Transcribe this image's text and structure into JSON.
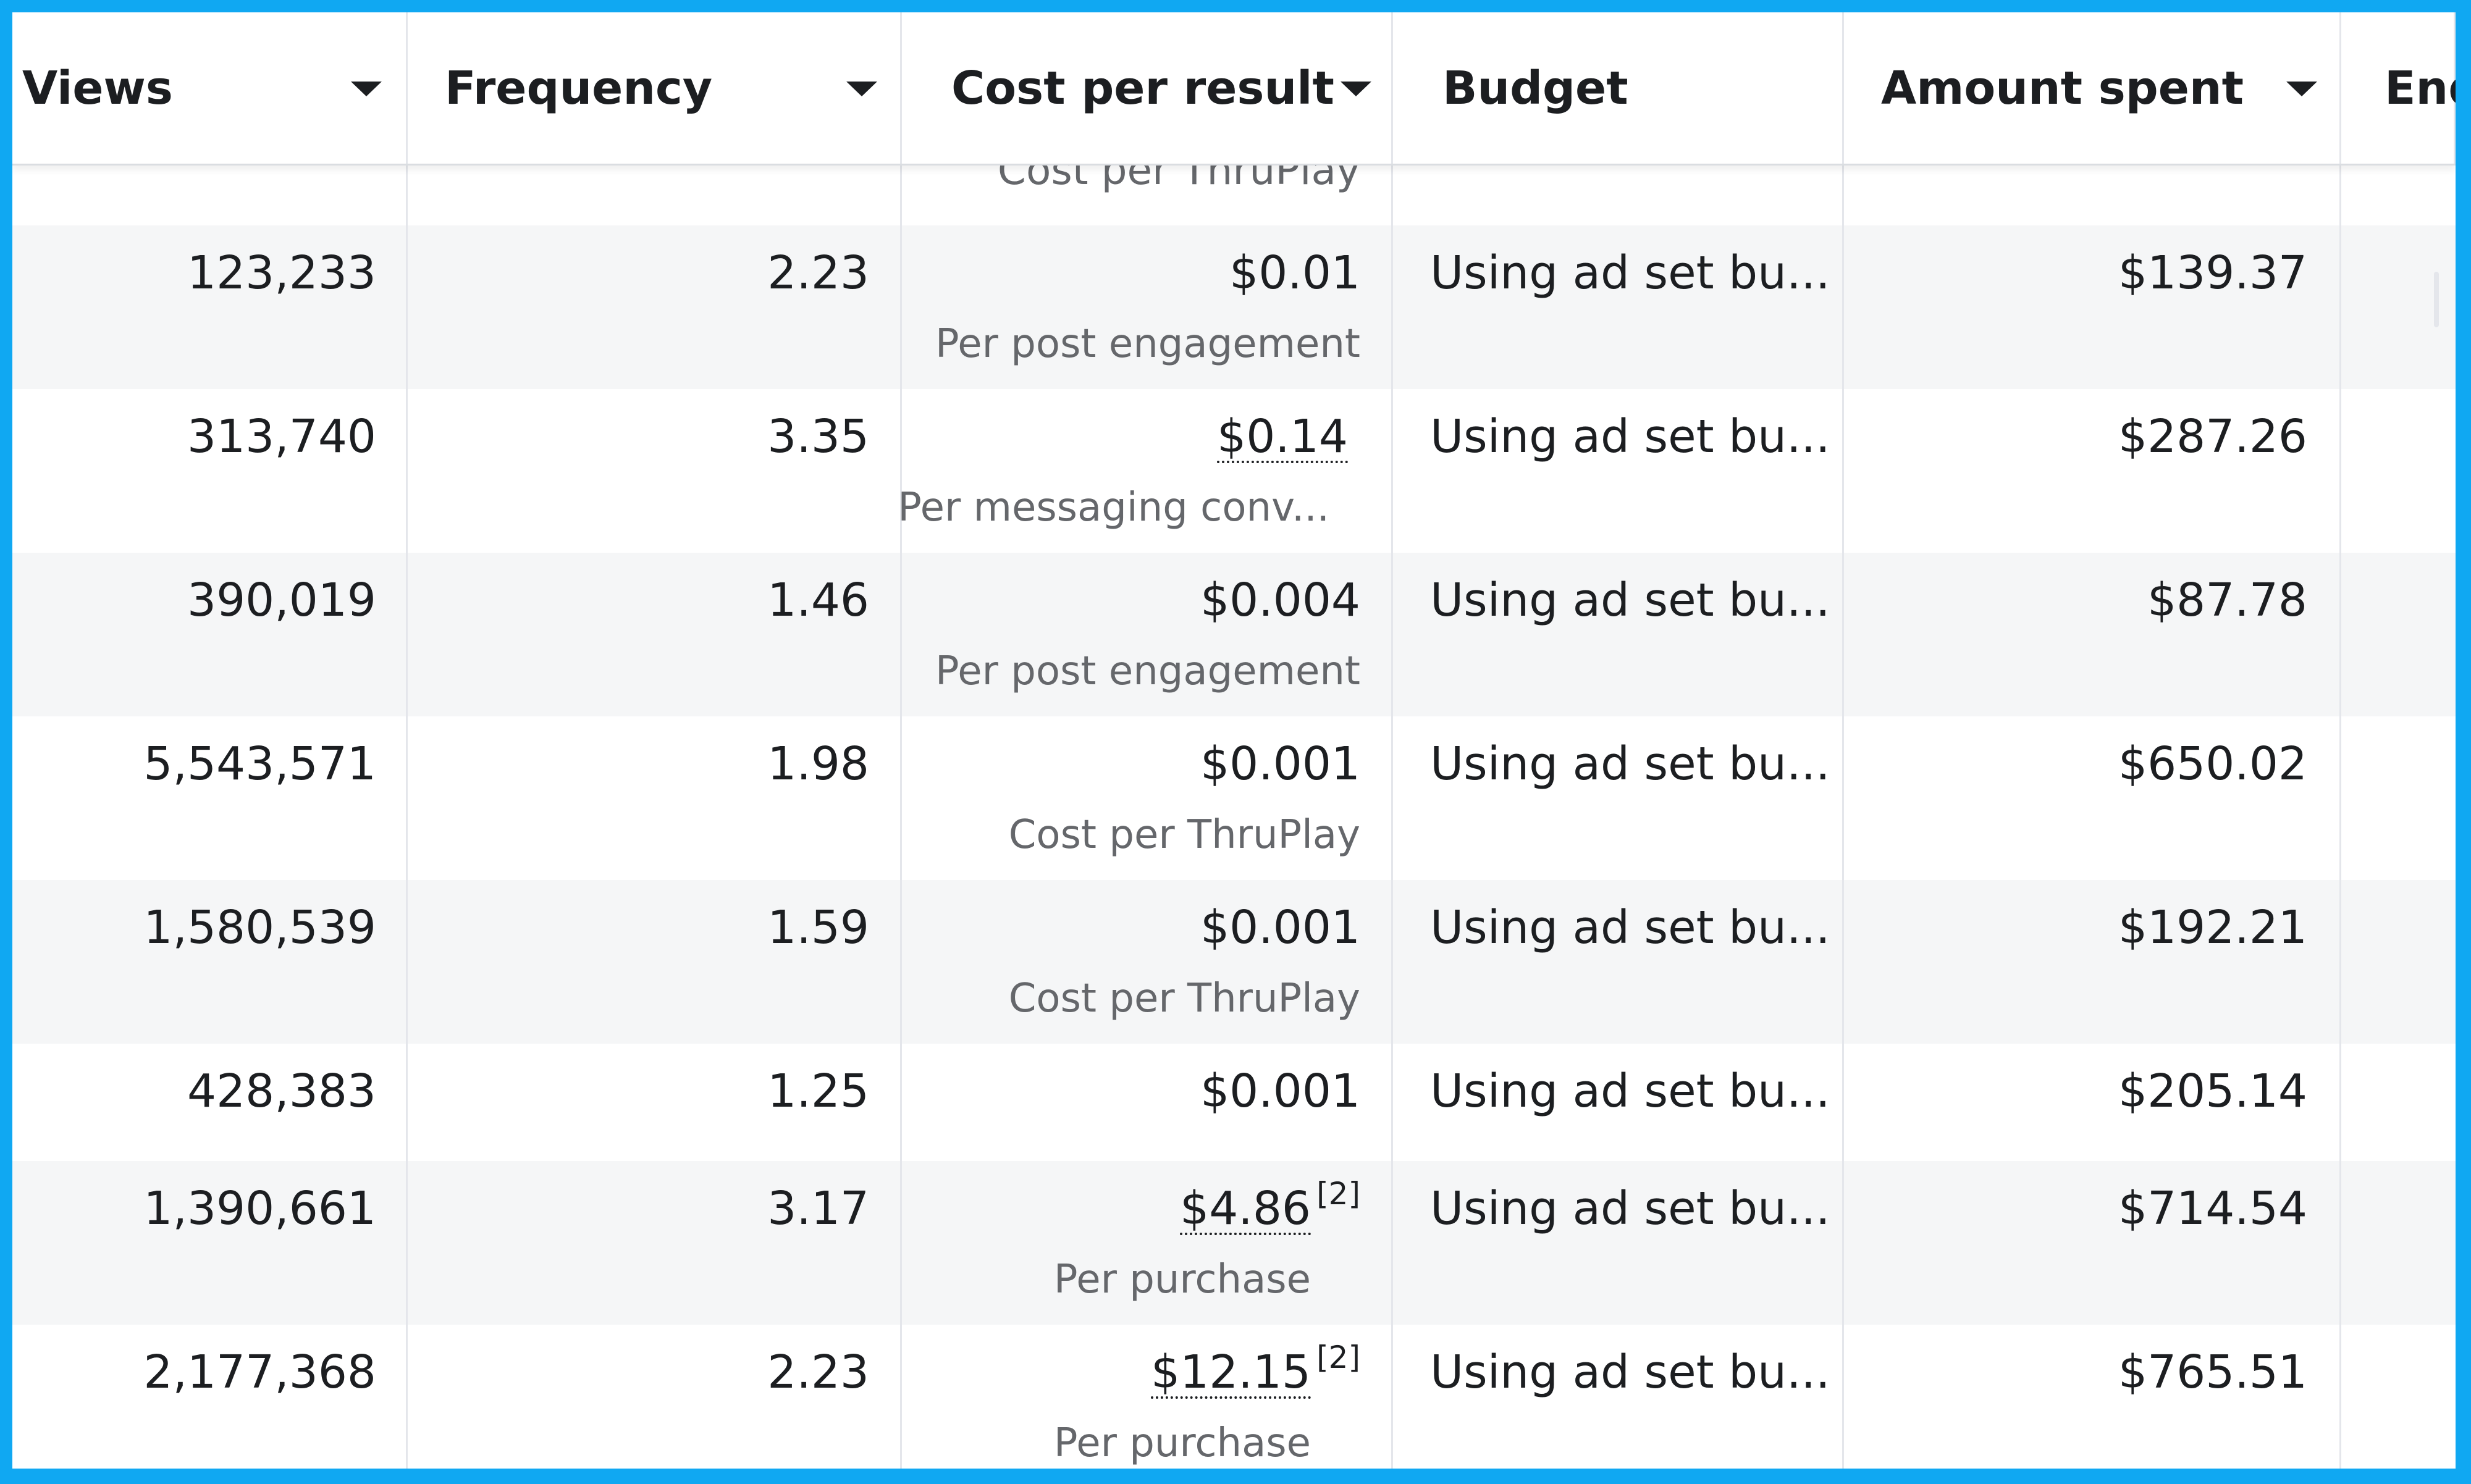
{
  "columns": [
    {
      "label": "Views",
      "sortable": true
    },
    {
      "label": "Frequency",
      "sortable": true
    },
    {
      "label": "Cost per result",
      "sortable": true
    },
    {
      "label": "Budget",
      "sortable": false
    },
    {
      "label": "Amount spent",
      "sortable": true
    },
    {
      "label": "End",
      "sortable": false
    }
  ],
  "partial_row": {
    "cost_sub": "Cost per ThruPlay"
  },
  "rows": [
    {
      "views": "123,233",
      "frequency": "2.23",
      "cost": "$0.01",
      "cost_sub": "Per post engagement",
      "budget": "Using ad set bu...",
      "amount": "$139.37"
    },
    {
      "views": "313,740",
      "frequency": "3.35",
      "cost": "$0.14",
      "cost_sub": "Per messaging conv...",
      "budget": "Using ad set bu...",
      "amount": "$287.26"
    },
    {
      "views": "390,019",
      "frequency": "1.46",
      "cost": "$0.004",
      "cost_sub": "Per post engagement",
      "budget": "Using ad set bu...",
      "amount": "$87.78"
    },
    {
      "views": "5,543,571",
      "frequency": "1.98",
      "cost": "$0.001",
      "cost_sub": "Cost per ThruPlay",
      "budget": "Using ad set bu...",
      "amount": "$650.02"
    },
    {
      "views": "1,580,539",
      "frequency": "1.59",
      "cost": "$0.001",
      "cost_sub": "Cost per ThruPlay",
      "budget": "Using ad set bu...",
      "amount": "$192.21"
    },
    {
      "views": "428,383",
      "frequency": "1.25",
      "cost": "$0.001",
      "cost_sub": "",
      "budget": "Using ad set bu...",
      "amount": "$205.14"
    },
    {
      "views": "1,390,661",
      "frequency": "3.17",
      "cost": "$4.86",
      "footnote": "[2]",
      "cost_sub": "Per purchase",
      "budget": "Using ad set bu...",
      "amount": "$714.54"
    },
    {
      "views": "2,177,368",
      "frequency": "2.23",
      "cost": "$12.15",
      "footnote": "[2]",
      "cost_sub": "Per purchase",
      "budget": "Using ad set bu...",
      "amount": "$765.51"
    }
  ],
  "colors": {
    "frame": "#10A8F2",
    "row_shade": "#f5f6f7",
    "subtext": "#65676b"
  },
  "icons": {
    "sort": "caret-down-icon"
  }
}
